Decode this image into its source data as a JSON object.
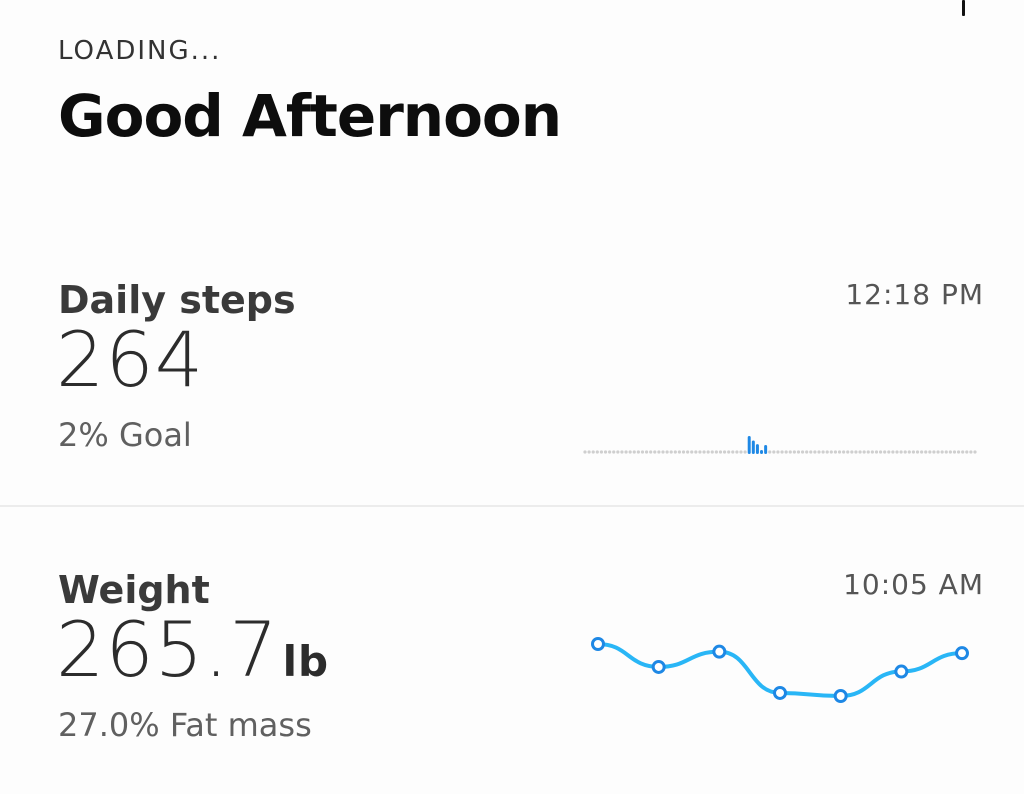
{
  "header": {
    "loading_label": "LOADING...",
    "greeting": "Good Afternoon"
  },
  "steps": {
    "title": "Daily steps",
    "time": "12:18 PM",
    "value": "264",
    "goal_label": "2% Goal",
    "goal_fraction": 0.02,
    "bar_color": "#1e88e5",
    "dot_color": "#cfcfcf",
    "hourly_activity": [
      0,
      0,
      0,
      0,
      0,
      0,
      0,
      0,
      0,
      0,
      0,
      0,
      0,
      0,
      0,
      0,
      0,
      0,
      0,
      0,
      0,
      0,
      0,
      0,
      0,
      0,
      0,
      0,
      0,
      0,
      0,
      0,
      0,
      0,
      0,
      0,
      0,
      0,
      0,
      0,
      1.0,
      0.75,
      0.55,
      0.1,
      0.5,
      0,
      0,
      0,
      0,
      0,
      0,
      0,
      0,
      0,
      0,
      0,
      0,
      0,
      0,
      0,
      0,
      0,
      0,
      0,
      0,
      0,
      0,
      0,
      0,
      0,
      0,
      0,
      0,
      0,
      0,
      0,
      0,
      0,
      0,
      0,
      0,
      0,
      0,
      0,
      0,
      0,
      0,
      0,
      0,
      0,
      0,
      0,
      0,
      0,
      0,
      0
    ]
  },
  "weight": {
    "title": "Weight",
    "time": "10:05 AM",
    "value": "265.7",
    "unit": "lb",
    "fat_label": "27.0% Fat mass",
    "line_color": "#29b6f6",
    "point_color": "#1e88e5",
    "trend": [
      268.0,
      266.5,
      267.5,
      264.8,
      264.6,
      266.2,
      267.4
    ]
  }
}
